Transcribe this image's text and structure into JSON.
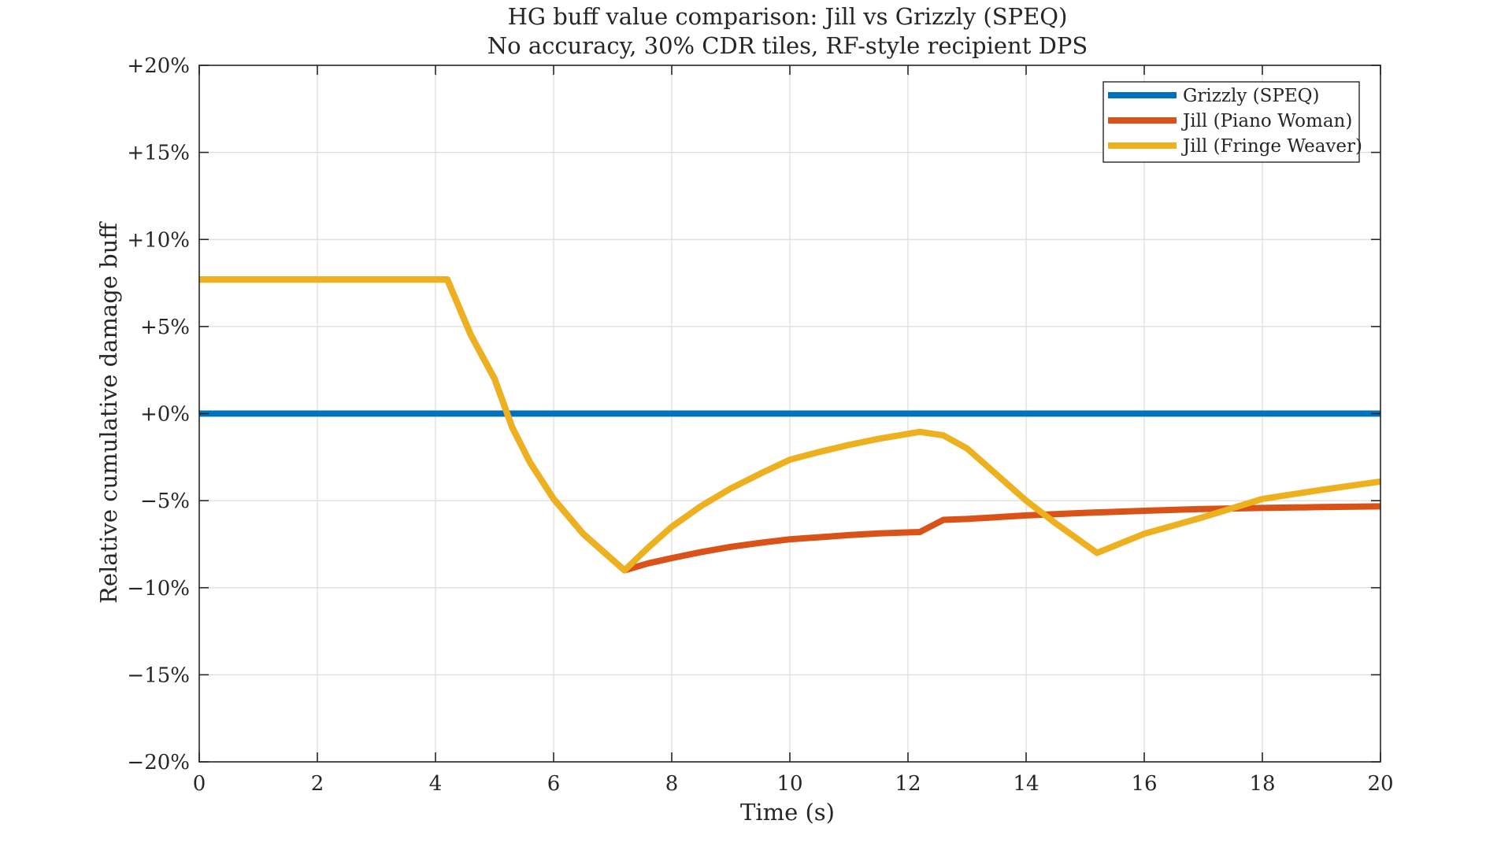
{
  "chart_data": {
    "type": "line",
    "title": "HG buff value comparison: Jill vs Grizzly (SPEQ)",
    "subtitle": "No accuracy, 30% CDR tiles, RF-style recipient DPS",
    "xlabel": "Time (s)",
    "ylabel": "Relative cumulative damage buff",
    "xlim": [
      0,
      20
    ],
    "ylim": [
      -20,
      20
    ],
    "xticks": [
      0,
      2,
      4,
      6,
      8,
      10,
      12,
      14,
      16,
      18,
      20
    ],
    "xtick_labels": [
      "0",
      "2",
      "4",
      "6",
      "8",
      "10",
      "12",
      "14",
      "16",
      "18",
      "20"
    ],
    "yticks": [
      20,
      15,
      10,
      5,
      0,
      -5,
      -10,
      -15,
      -20
    ],
    "ytick_labels": [
      "+20%",
      "+15%",
      "+10%",
      "+5%",
      "+0%",
      "−5%",
      "−10%",
      "−15%",
      "−20%"
    ],
    "grid": true,
    "legend_position": "top-right",
    "series": [
      {
        "name": "Grizzly (SPEQ)",
        "color": "#0072BD",
        "x": [
          0,
          20
        ],
        "y": [
          0,
          0
        ]
      },
      {
        "name": "Jill (Piano Woman)",
        "color": "#D95319",
        "x": [
          0,
          4.2,
          4.6,
          5.0,
          5.3,
          5.6,
          6.0,
          6.5,
          7.0,
          7.2,
          7.6,
          8.0,
          8.5,
          9.0,
          9.5,
          10.0,
          10.5,
          11.0,
          11.5,
          12.2,
          12.6,
          13.0,
          14.0,
          15.0,
          16.0,
          17.0,
          18.0,
          19.0,
          20.0
        ],
        "y": [
          7.7,
          7.7,
          4.5,
          2.0,
          -0.8,
          -2.8,
          -4.9,
          -6.9,
          -8.4,
          -9.0,
          -8.6,
          -8.3,
          -7.95,
          -7.65,
          -7.42,
          -7.22,
          -7.1,
          -6.98,
          -6.88,
          -6.8,
          -6.1,
          -6.05,
          -5.85,
          -5.7,
          -5.58,
          -5.48,
          -5.42,
          -5.37,
          -5.33
        ]
      },
      {
        "name": "Jill (Fringe Weaver)",
        "color": "#EDB120",
        "x": [
          0,
          4.2,
          4.6,
          5.0,
          5.3,
          5.6,
          6.0,
          6.5,
          7.0,
          7.2,
          7.6,
          8.0,
          8.5,
          9.0,
          9.5,
          10.0,
          10.5,
          11.0,
          11.5,
          12.2,
          12.6,
          13.0,
          13.5,
          14.0,
          14.5,
          15.2,
          16.0,
          17.0,
          18.0,
          19.0,
          20.0
        ],
        "y": [
          7.7,
          7.7,
          4.5,
          2.0,
          -0.8,
          -2.8,
          -4.9,
          -6.9,
          -8.4,
          -9.0,
          -7.7,
          -6.5,
          -5.3,
          -4.3,
          -3.45,
          -2.65,
          -2.2,
          -1.8,
          -1.45,
          -1.05,
          -1.25,
          -2.0,
          -3.5,
          -5.0,
          -6.3,
          -8.0,
          -6.9,
          -5.95,
          -4.9,
          -4.38,
          -3.9
        ]
      }
    ]
  }
}
